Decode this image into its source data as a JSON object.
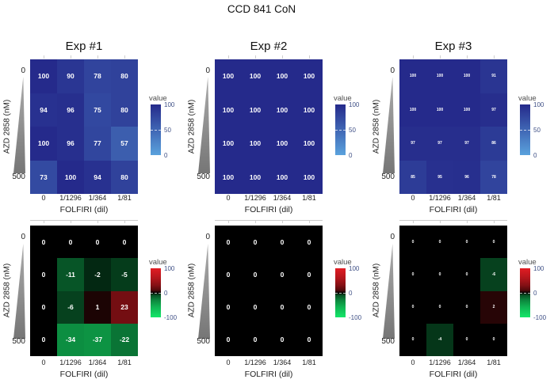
{
  "figure_title": "CCD 841 CoN",
  "colors": {
    "viability_high": "#252A8B",
    "viability_low": "#5AA2DD",
    "synergy_positive": "#E11C23",
    "synergy_negative": "#14E669",
    "synergy_zero": "#000000",
    "wedge_gray": "#8C8C8C"
  },
  "chart_data": [
    {
      "type": "heatmap",
      "panel": "exp1-viability",
      "title": "Exp #1",
      "x_label": "FOLFIRI (dil)",
      "x_categories": [
        "0",
        "1/1296",
        "1/364",
        "1/81"
      ],
      "y_axis": {
        "label": "AZD 2858 (nM)",
        "top_tick": "0",
        "bottom_tick": "500"
      },
      "scale": "blue",
      "legend": {
        "title": "value",
        "ticks": [
          "100",
          "50",
          "0"
        ],
        "range": [
          0,
          100
        ]
      },
      "values": [
        [
          100,
          90,
          78,
          80
        ],
        [
          94,
          96,
          75,
          80
        ],
        [
          100,
          96,
          77,
          57
        ],
        [
          73,
          100,
          94,
          80
        ]
      ]
    },
    {
      "type": "heatmap",
      "panel": "exp2-viability",
      "title": "Exp #2",
      "x_label": "FOLFIRI (dil)",
      "x_categories": [
        "0",
        "1/1296",
        "1/364",
        "1/81"
      ],
      "y_axis": {
        "label": "AZD 2858 (nM)",
        "top_tick": "0",
        "bottom_tick": "500"
      },
      "scale": "blue",
      "legend": {
        "title": "value",
        "ticks": [
          "100",
          "50",
          "0"
        ],
        "range": [
          0,
          100
        ]
      },
      "values": [
        [
          100,
          100,
          100,
          100
        ],
        [
          100,
          100,
          100,
          100
        ],
        [
          100,
          100,
          100,
          100
        ],
        [
          100,
          100,
          100,
          100
        ]
      ]
    },
    {
      "type": "heatmap",
      "panel": "exp3-viability",
      "title": "Exp #3",
      "x_label": "FOLFIRI (dil)",
      "x_categories": [
        "0",
        "1/1296",
        "1/364",
        "1/81"
      ],
      "y_axis": {
        "label": "AZD 2858 (nM)",
        "top_tick": "0",
        "bottom_tick": "500"
      },
      "scale": "blue",
      "legend": {
        "title": "value",
        "ticks": [
          "100",
          "50",
          "0"
        ],
        "range": [
          0,
          100
        ]
      },
      "values": [
        [
          100,
          100,
          100,
          91
        ],
        [
          100,
          100,
          100,
          97
        ],
        [
          97,
          97,
          97,
          86
        ],
        [
          85,
          95,
          96,
          78
        ]
      ]
    },
    {
      "type": "heatmap",
      "panel": "exp1-synergy",
      "title": "",
      "x_label": "FOLFIRI (dil)",
      "x_categories": [
        "0",
        "1/1296",
        "1/364",
        "1/81"
      ],
      "y_axis": {
        "label": "AZD 2858 (nM)",
        "top_tick": "0",
        "bottom_tick": "500"
      },
      "scale": "diverging",
      "legend": {
        "title": "value",
        "ticks": [
          "100",
          "0",
          "-100"
        ],
        "range": [
          -100,
          100
        ]
      },
      "values": [
        [
          0,
          0,
          0,
          0
        ],
        [
          0,
          -11,
          -2,
          -5
        ],
        [
          0,
          -6,
          1,
          23
        ],
        [
          0,
          -34,
          -37,
          -22
        ]
      ]
    },
    {
      "type": "heatmap",
      "panel": "exp2-synergy",
      "title": "",
      "x_label": "FOLFIRI (dil)",
      "x_categories": [
        "0",
        "1/1296",
        "1/364",
        "1/81"
      ],
      "y_axis": {
        "label": "AZD 2858 (nM)",
        "top_tick": "0",
        "bottom_tick": "500"
      },
      "scale": "diverging",
      "legend": {
        "title": "value",
        "ticks": [
          "100",
          "0",
          "-100"
        ],
        "range": [
          -100,
          100
        ]
      },
      "values": [
        [
          0,
          0,
          0,
          0
        ],
        [
          0,
          0,
          0,
          0
        ],
        [
          0,
          0,
          0,
          0
        ],
        [
          0,
          0,
          0,
          0
        ]
      ]
    },
    {
      "type": "heatmap",
      "panel": "exp3-synergy",
      "title": "",
      "x_label": "FOLFIRI (dil)",
      "x_categories": [
        "0",
        "1/1296",
        "1/364",
        "1/81"
      ],
      "y_axis": {
        "label": "AZD 2858 (nM)",
        "top_tick": "0",
        "bottom_tick": "500"
      },
      "scale": "diverging",
      "legend": {
        "title": "value",
        "ticks": [
          "100",
          "0",
          "-100"
        ],
        "range": [
          -100,
          100
        ]
      },
      "values": [
        [
          0,
          0,
          0,
          0
        ],
        [
          0,
          0,
          0,
          -6
        ],
        [
          0,
          0,
          0,
          2
        ],
        [
          0,
          -4,
          0,
          0
        ]
      ]
    }
  ]
}
